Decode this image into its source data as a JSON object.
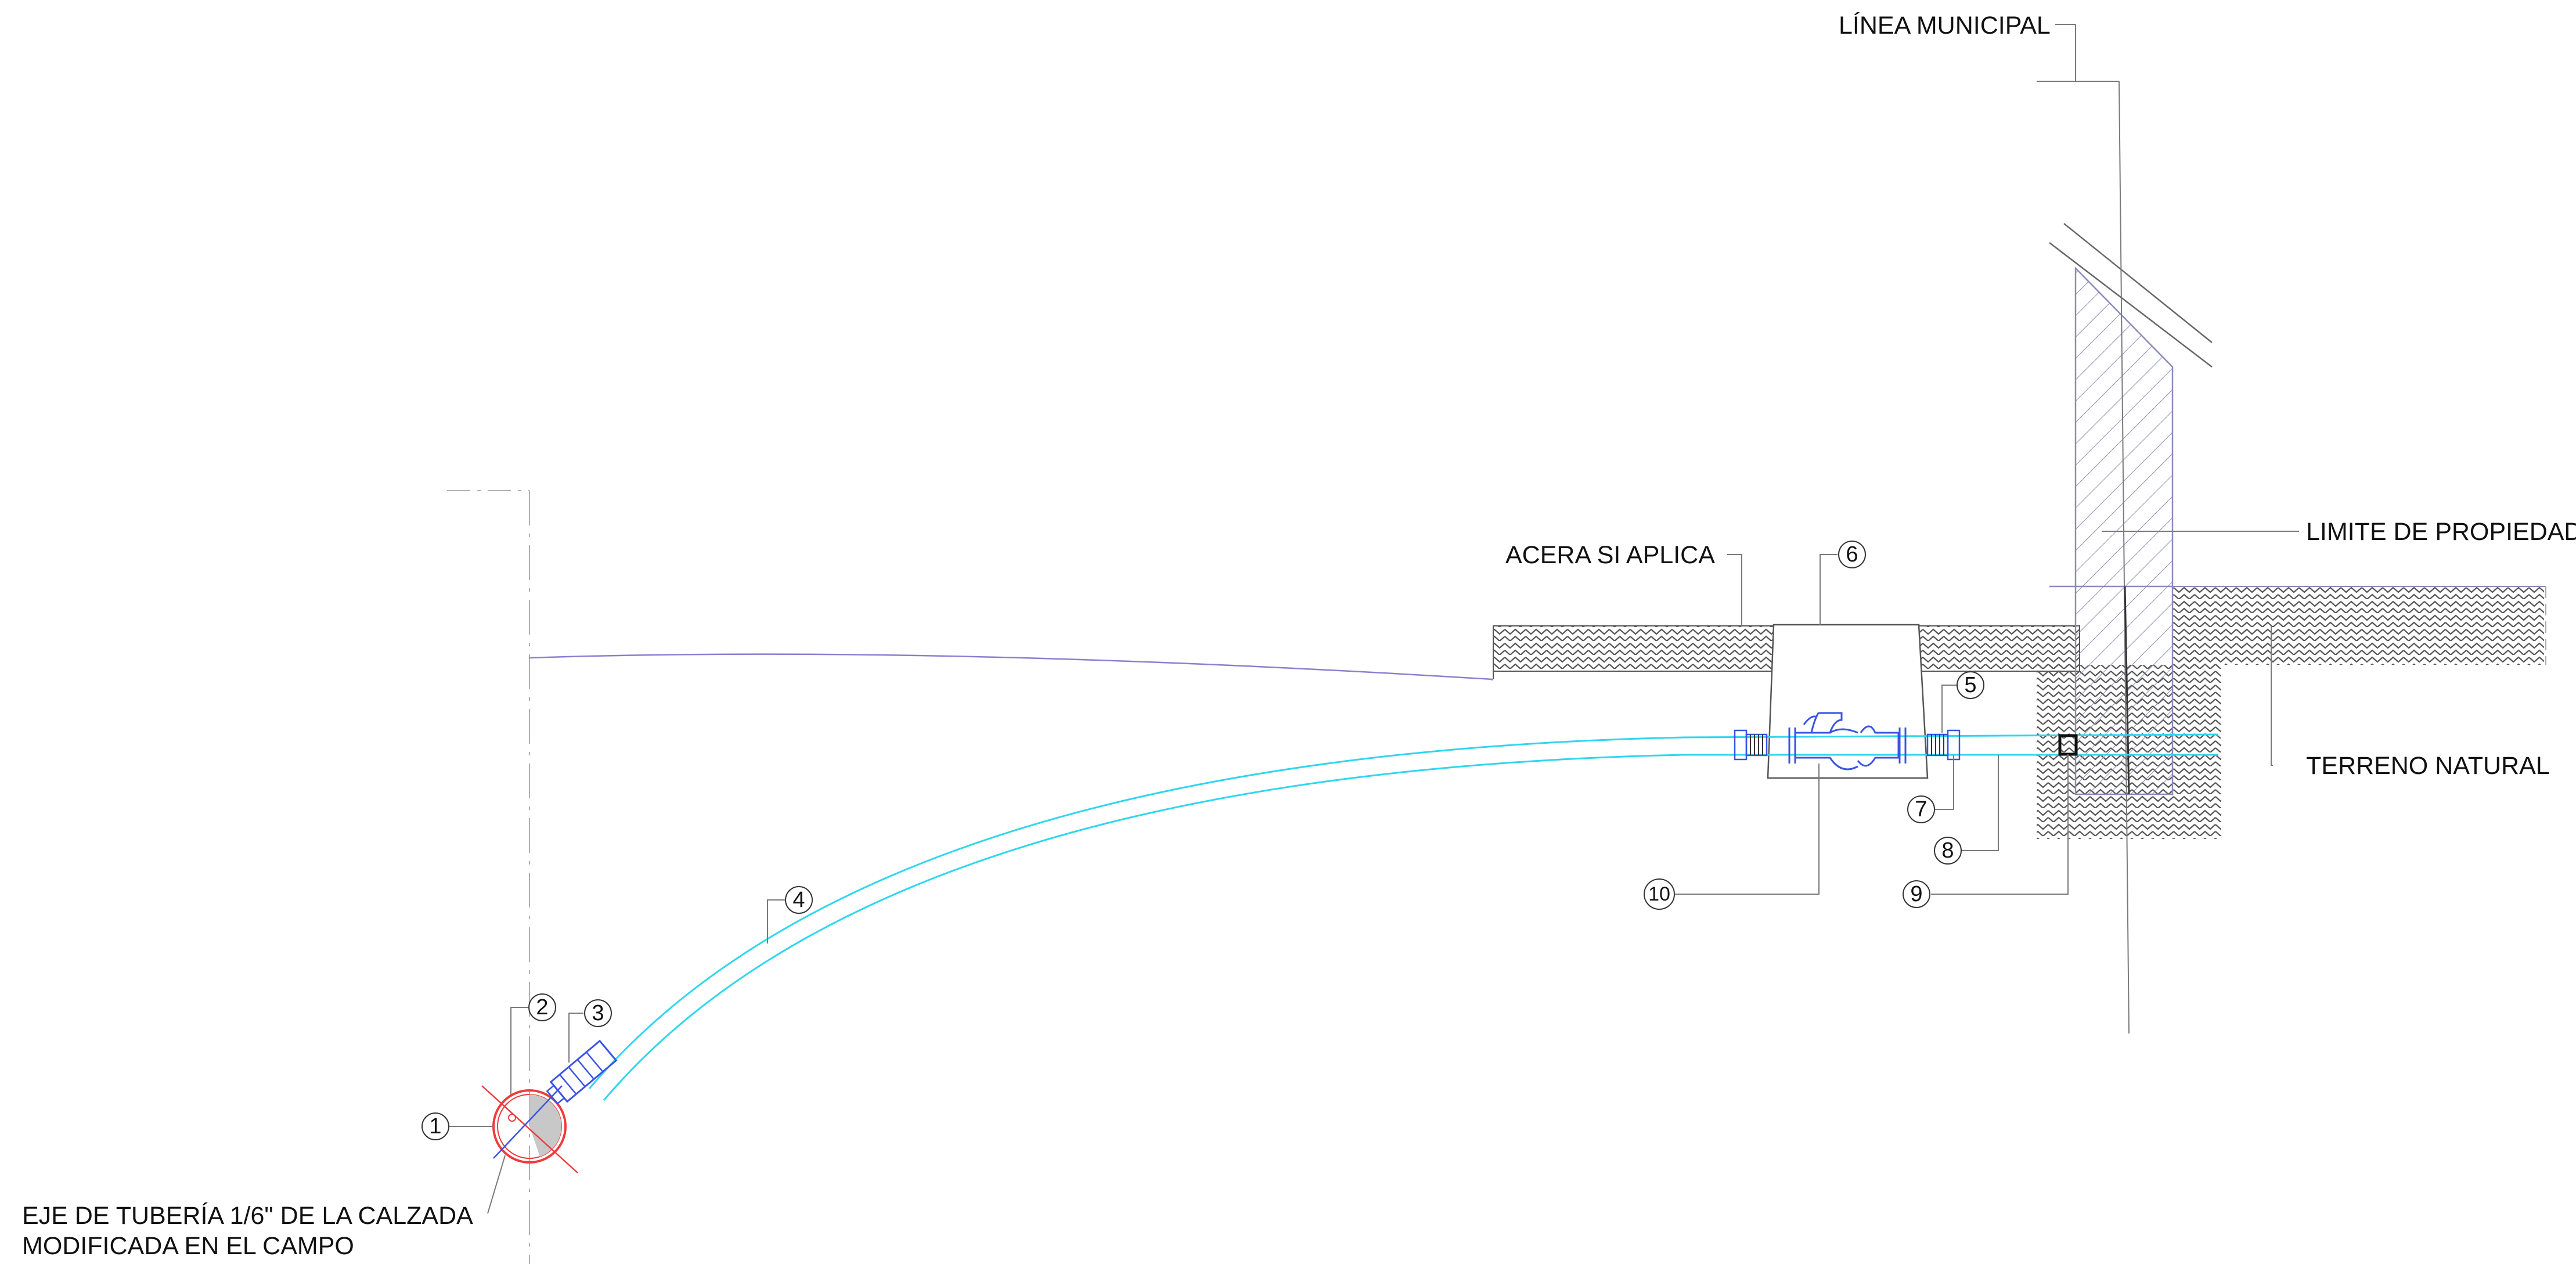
{
  "drawing": {
    "labels": {
      "municipal_line": "LÍNEA MUNICIPAL",
      "property_limit": "LIMITE DE PROPIEDAD",
      "sidewalk": "ACERA SI APLICA",
      "natural_ground": "TERRENO NATURAL",
      "pipe_axis_line1": "EJE DE TUBERÍA 1/6\" DE LA CALZADA",
      "pipe_axis_line2": "MODIFICADA EN EL CAMPO"
    },
    "callouts": [
      "1",
      "2",
      "3",
      "4",
      "5",
      "6",
      "7",
      "8",
      "9",
      "10"
    ]
  }
}
